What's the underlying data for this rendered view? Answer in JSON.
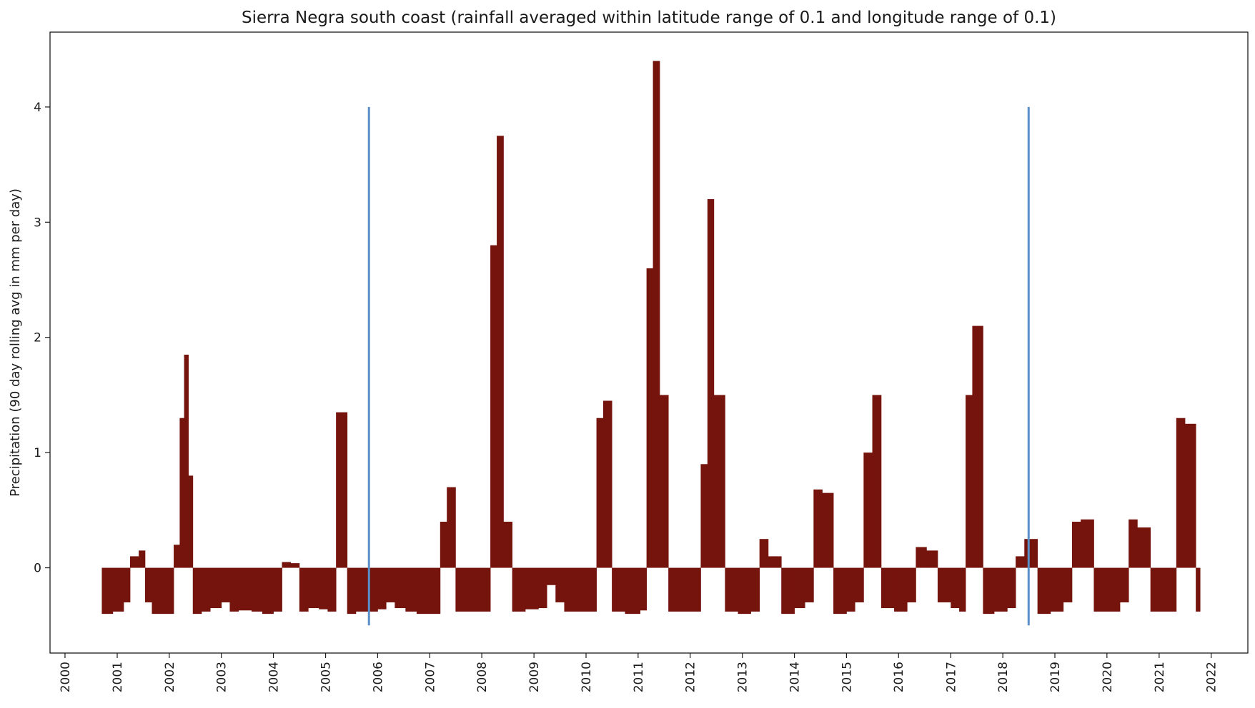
{
  "chart_data": {
    "type": "bar",
    "title": "Sierra Negra south coast (rainfall averaged within latitude range of 0.1 and longitude range of 0.1)",
    "xlabel": "",
    "ylabel": "Precipitation (90 day rolling avg in mm per day)",
    "xlim": [
      "1999-09-18",
      "2022-09-15"
    ],
    "ylim": [
      -0.74,
      4.65
    ],
    "grid": false,
    "bar_color": "#75140c",
    "vline_color": "#5b8fc7",
    "x_ticks": [
      "2000",
      "2001",
      "2002",
      "2003",
      "2004",
      "2005",
      "2006",
      "2007",
      "2008",
      "2009",
      "2010",
      "2011",
      "2012",
      "2013",
      "2014",
      "2015",
      "2016",
      "2017",
      "2018",
      "2019",
      "2020",
      "2021",
      "2022"
    ],
    "y_ticks": [
      0,
      1,
      2,
      3,
      4
    ],
    "vlines": [
      {
        "x": "2005-11-01",
        "ymin": -0.5,
        "ymax": 4.0
      },
      {
        "x": "2018-07-01",
        "ymin": -0.5,
        "ymax": 4.0
      }
    ],
    "x": [
      "2000-09-15",
      "2000-12-01",
      "2001-02-15",
      "2001-04-01",
      "2001-06-01",
      "2001-07-15",
      "2001-09-01",
      "2001-10-15",
      "2001-12-15",
      "2002-02-01",
      "2002-03-15",
      "2002-04-15",
      "2002-05-15",
      "2002-06-15",
      "2002-08-15",
      "2002-10-15",
      "2003-01-01",
      "2003-03-01",
      "2003-05-01",
      "2003-08-01",
      "2003-10-15",
      "2004-01-01",
      "2004-03-01",
      "2004-05-01",
      "2004-07-01",
      "2004-09-01",
      "2004-11-15",
      "2005-01-15",
      "2005-03-15",
      "2005-06-01",
      "2005-08-01",
      "2005-10-01",
      "2006-01-01",
      "2006-03-01",
      "2006-05-01",
      "2006-07-15",
      "2006-10-01",
      "2007-01-01",
      "2007-03-15",
      "2007-05-01",
      "2007-07-01",
      "2007-10-01",
      "2008-01-01",
      "2008-03-01",
      "2008-04-15",
      "2008-06-01",
      "2008-08-01",
      "2008-11-01",
      "2009-02-01",
      "2009-04-01",
      "2009-06-01",
      "2009-08-01",
      "2009-11-01",
      "2010-02-01",
      "2010-03-15",
      "2010-05-01",
      "2010-07-01",
      "2010-10-01",
      "2011-01-15",
      "2011-03-01",
      "2011-04-15",
      "2011-06-01",
      "2011-08-01",
      "2011-11-01",
      "2012-02-01",
      "2012-03-15",
      "2012-05-01",
      "2012-06-15",
      "2012-09-01",
      "2012-12-01",
      "2013-03-01",
      "2013-05-01",
      "2013-07-01",
      "2013-10-01",
      "2014-01-01",
      "2014-03-15",
      "2014-05-15",
      "2014-07-15",
      "2014-10-01",
      "2015-01-01",
      "2015-03-01",
      "2015-05-01",
      "2015-07-01",
      "2015-09-01",
      "2015-12-01",
      "2016-03-01",
      "2016-05-01",
      "2016-07-15",
      "2016-10-01",
      "2017-01-01",
      "2017-03-01",
      "2017-04-15",
      "2017-06-01",
      "2017-08-15",
      "2017-11-01",
      "2018-02-01",
      "2018-04-01",
      "2018-06-01",
      "2018-09-01",
      "2018-12-01",
      "2019-03-01",
      "2019-05-01",
      "2019-07-01",
      "2019-10-01",
      "2020-01-15",
      "2020-04-01",
      "2020-06-01",
      "2020-08-01",
      "2020-11-01",
      "2021-01-15",
      "2021-03-15",
      "2021-05-01",
      "2021-07-01",
      "2021-09-15"
    ],
    "values": [
      -0.4,
      -0.38,
      -0.3,
      0.1,
      0.15,
      -0.3,
      -0.4,
      -0.4,
      -0.4,
      0.2,
      1.3,
      1.85,
      0.8,
      -0.4,
      -0.38,
      -0.35,
      -0.3,
      -0.38,
      -0.37,
      -0.38,
      -0.4,
      -0.38,
      0.05,
      0.04,
      -0.38,
      -0.35,
      -0.36,
      -0.38,
      1.35,
      -0.4,
      -0.38,
      -0.38,
      -0.36,
      -0.3,
      -0.35,
      -0.38,
      -0.4,
      -0.4,
      0.4,
      0.7,
      -0.38,
      -0.38,
      -0.38,
      2.8,
      3.75,
      0.4,
      -0.38,
      -0.36,
      -0.35,
      -0.15,
      -0.3,
      -0.38,
      -0.38,
      -0.38,
      1.3,
      1.45,
      -0.38,
      -0.4,
      -0.37,
      2.6,
      4.4,
      1.5,
      -0.38,
      -0.38,
      -0.38,
      0.9,
      3.2,
      1.5,
      -0.38,
      -0.4,
      -0.38,
      0.25,
      0.1,
      -0.4,
      -0.35,
      -0.3,
      0.68,
      0.65,
      -0.4,
      -0.38,
      -0.3,
      1.0,
      1.5,
      -0.35,
      -0.38,
      -0.3,
      0.18,
      0.15,
      -0.3,
      -0.35,
      -0.38,
      1.5,
      2.1,
      -0.4,
      -0.38,
      -0.35,
      0.1,
      0.25,
      -0.4,
      -0.38,
      -0.3,
      0.4,
      0.42,
      -0.38,
      -0.38,
      -0.3,
      0.42,
      0.35,
      -0.38,
      -0.38,
      -0.38,
      1.3,
      1.25,
      -0.38
    ]
  }
}
